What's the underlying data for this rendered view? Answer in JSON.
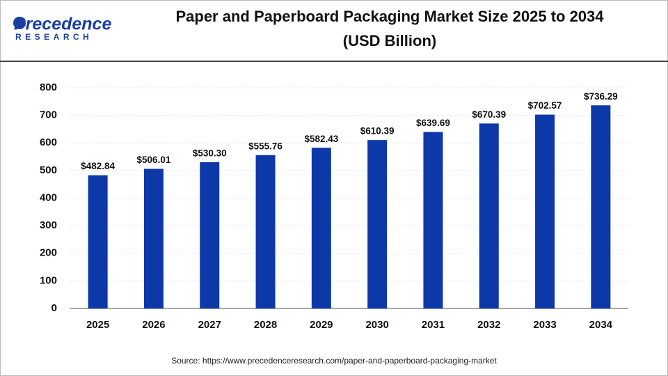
{
  "logo": {
    "name": "Precedence",
    "tagline": "RESEARCH"
  },
  "chart_data": {
    "type": "bar",
    "title": "Paper and Paperboard Packaging Market Size 2025 to 2034",
    "subtitle": "(USD Billion)",
    "categories": [
      "2025",
      "2026",
      "2027",
      "2028",
      "2029",
      "2030",
      "2031",
      "2032",
      "2033",
      "2034"
    ],
    "values": [
      482.84,
      506.01,
      530.3,
      555.76,
      582.43,
      610.39,
      639.69,
      670.39,
      702.57,
      736.29
    ],
    "value_labels": [
      "$482.84",
      "$506.01",
      "$530.30",
      "$555.76",
      "$582.43",
      "$610.39",
      "$639.69",
      "$670.39",
      "$702.57",
      "$736.29"
    ],
    "color": "#0d38a8",
    "ylim": [
      0,
      800
    ],
    "yticks": [
      0,
      100,
      200,
      300,
      400,
      500,
      600,
      700,
      800
    ],
    "grid": true,
    "source": "Source: https://www.precedenceresearch.com/paper-and-paperboard-packaging-market"
  }
}
